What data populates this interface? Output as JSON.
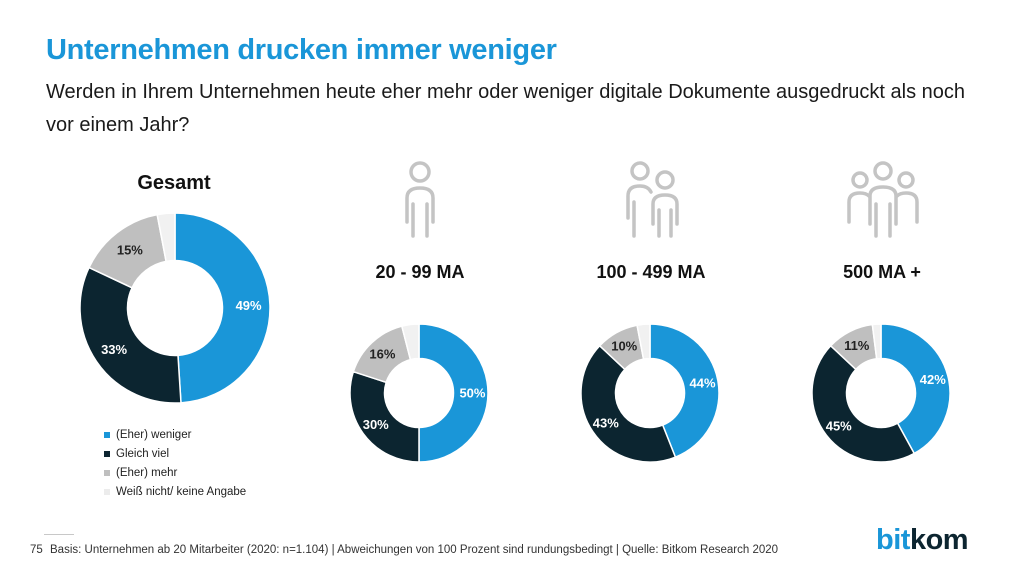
{
  "header": {
    "title": "Unternehmen drucken immer weniger",
    "subtitle": "Werden in Ihrem Unternehmen heute eher mehr oder weniger digitale Dokumente ausgedruckt als noch vor einem Jahr?"
  },
  "colors": {
    "weniger": "#1a96d8",
    "gleich": "#0c2530",
    "mehr": "#bfbfbf",
    "keine": "#f1f1f1"
  },
  "chart_data": {
    "type": "pie",
    "title": "Unternehmen drucken immer weniger",
    "categories": [
      "(Eher) weniger",
      "Gleich viel",
      "(Eher) mehr",
      "Weiß nicht/ keine Angabe"
    ],
    "series": [
      {
        "name": "Gesamt",
        "values": [
          49,
          33,
          15,
          3
        ],
        "labels": [
          "49%",
          "33%",
          "15%",
          ""
        ]
      },
      {
        "name": "20 - 99 MA",
        "values": [
          50,
          30,
          16,
          4
        ],
        "labels": [
          "50%",
          "30%",
          "16%",
          ""
        ]
      },
      {
        "name": "100 - 499 MA",
        "values": [
          44,
          43,
          10,
          3
        ],
        "labels": [
          "44%",
          "43%",
          "10%",
          ""
        ]
      },
      {
        "name": "500 MA +",
        "values": [
          42,
          45,
          11,
          2
        ],
        "labels": [
          "42%",
          "45%",
          "11%",
          ""
        ]
      }
    ],
    "legend_position": "bottom-left"
  },
  "legend": {
    "items": [
      "(Eher) weniger",
      "Gleich viel",
      "(Eher) mehr",
      "Weiß nicht/ keine Angabe"
    ]
  },
  "footer": {
    "page": "75",
    "text": "Basis: Unternehmen ab 20 Mitarbeiter (2020: n=1.104) | Abweichungen von 100 Prozent sind rundungsbedingt | Quelle: Bitkom Research 2020"
  },
  "logo": {
    "bit": "bit",
    "kom": "kom"
  }
}
